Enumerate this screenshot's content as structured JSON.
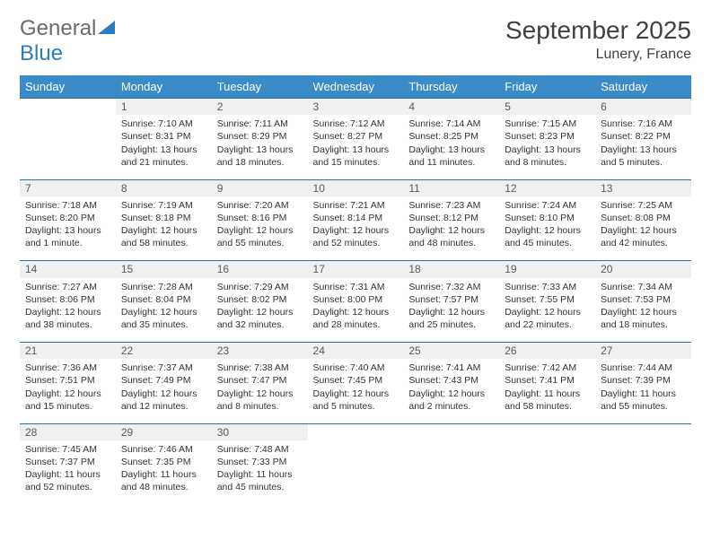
{
  "brand": {
    "part1": "General",
    "part2": "Blue"
  },
  "title": "September 2025",
  "location": "Lunery, France",
  "colors": {
    "header_bg": "#3b8bc9",
    "header_text": "#ffffff",
    "row_border": "#2f6f9e",
    "daynum_bg": "#eef0f1",
    "text": "#333333",
    "logo_gray": "#6b6b6b",
    "logo_blue": "#2b7bbf"
  },
  "typography": {
    "title_fontsize": 28,
    "location_fontsize": 16,
    "header_fontsize": 13,
    "cell_fontsize": 10.5
  },
  "day_names": [
    "Sunday",
    "Monday",
    "Tuesday",
    "Wednesday",
    "Thursday",
    "Friday",
    "Saturday"
  ],
  "weeks": [
    [
      null,
      {
        "n": "1",
        "sr": "Sunrise: 7:10 AM",
        "ss": "Sunset: 8:31 PM",
        "dl": "Daylight: 13 hours and 21 minutes."
      },
      {
        "n": "2",
        "sr": "Sunrise: 7:11 AM",
        "ss": "Sunset: 8:29 PM",
        "dl": "Daylight: 13 hours and 18 minutes."
      },
      {
        "n": "3",
        "sr": "Sunrise: 7:12 AM",
        "ss": "Sunset: 8:27 PM",
        "dl": "Daylight: 13 hours and 15 minutes."
      },
      {
        "n": "4",
        "sr": "Sunrise: 7:14 AM",
        "ss": "Sunset: 8:25 PM",
        "dl": "Daylight: 13 hours and 11 minutes."
      },
      {
        "n": "5",
        "sr": "Sunrise: 7:15 AM",
        "ss": "Sunset: 8:23 PM",
        "dl": "Daylight: 13 hours and 8 minutes."
      },
      {
        "n": "6",
        "sr": "Sunrise: 7:16 AM",
        "ss": "Sunset: 8:22 PM",
        "dl": "Daylight: 13 hours and 5 minutes."
      }
    ],
    [
      {
        "n": "7",
        "sr": "Sunrise: 7:18 AM",
        "ss": "Sunset: 8:20 PM",
        "dl": "Daylight: 13 hours and 1 minute."
      },
      {
        "n": "8",
        "sr": "Sunrise: 7:19 AM",
        "ss": "Sunset: 8:18 PM",
        "dl": "Daylight: 12 hours and 58 minutes."
      },
      {
        "n": "9",
        "sr": "Sunrise: 7:20 AM",
        "ss": "Sunset: 8:16 PM",
        "dl": "Daylight: 12 hours and 55 minutes."
      },
      {
        "n": "10",
        "sr": "Sunrise: 7:21 AM",
        "ss": "Sunset: 8:14 PM",
        "dl": "Daylight: 12 hours and 52 minutes."
      },
      {
        "n": "11",
        "sr": "Sunrise: 7:23 AM",
        "ss": "Sunset: 8:12 PM",
        "dl": "Daylight: 12 hours and 48 minutes."
      },
      {
        "n": "12",
        "sr": "Sunrise: 7:24 AM",
        "ss": "Sunset: 8:10 PM",
        "dl": "Daylight: 12 hours and 45 minutes."
      },
      {
        "n": "13",
        "sr": "Sunrise: 7:25 AM",
        "ss": "Sunset: 8:08 PM",
        "dl": "Daylight: 12 hours and 42 minutes."
      }
    ],
    [
      {
        "n": "14",
        "sr": "Sunrise: 7:27 AM",
        "ss": "Sunset: 8:06 PM",
        "dl": "Daylight: 12 hours and 38 minutes."
      },
      {
        "n": "15",
        "sr": "Sunrise: 7:28 AM",
        "ss": "Sunset: 8:04 PM",
        "dl": "Daylight: 12 hours and 35 minutes."
      },
      {
        "n": "16",
        "sr": "Sunrise: 7:29 AM",
        "ss": "Sunset: 8:02 PM",
        "dl": "Daylight: 12 hours and 32 minutes."
      },
      {
        "n": "17",
        "sr": "Sunrise: 7:31 AM",
        "ss": "Sunset: 8:00 PM",
        "dl": "Daylight: 12 hours and 28 minutes."
      },
      {
        "n": "18",
        "sr": "Sunrise: 7:32 AM",
        "ss": "Sunset: 7:57 PM",
        "dl": "Daylight: 12 hours and 25 minutes."
      },
      {
        "n": "19",
        "sr": "Sunrise: 7:33 AM",
        "ss": "Sunset: 7:55 PM",
        "dl": "Daylight: 12 hours and 22 minutes."
      },
      {
        "n": "20",
        "sr": "Sunrise: 7:34 AM",
        "ss": "Sunset: 7:53 PM",
        "dl": "Daylight: 12 hours and 18 minutes."
      }
    ],
    [
      {
        "n": "21",
        "sr": "Sunrise: 7:36 AM",
        "ss": "Sunset: 7:51 PM",
        "dl": "Daylight: 12 hours and 15 minutes."
      },
      {
        "n": "22",
        "sr": "Sunrise: 7:37 AM",
        "ss": "Sunset: 7:49 PM",
        "dl": "Daylight: 12 hours and 12 minutes."
      },
      {
        "n": "23",
        "sr": "Sunrise: 7:38 AM",
        "ss": "Sunset: 7:47 PM",
        "dl": "Daylight: 12 hours and 8 minutes."
      },
      {
        "n": "24",
        "sr": "Sunrise: 7:40 AM",
        "ss": "Sunset: 7:45 PM",
        "dl": "Daylight: 12 hours and 5 minutes."
      },
      {
        "n": "25",
        "sr": "Sunrise: 7:41 AM",
        "ss": "Sunset: 7:43 PM",
        "dl": "Daylight: 12 hours and 2 minutes."
      },
      {
        "n": "26",
        "sr": "Sunrise: 7:42 AM",
        "ss": "Sunset: 7:41 PM",
        "dl": "Daylight: 11 hours and 58 minutes."
      },
      {
        "n": "27",
        "sr": "Sunrise: 7:44 AM",
        "ss": "Sunset: 7:39 PM",
        "dl": "Daylight: 11 hours and 55 minutes."
      }
    ],
    [
      {
        "n": "28",
        "sr": "Sunrise: 7:45 AM",
        "ss": "Sunset: 7:37 PM",
        "dl": "Daylight: 11 hours and 52 minutes."
      },
      {
        "n": "29",
        "sr": "Sunrise: 7:46 AM",
        "ss": "Sunset: 7:35 PM",
        "dl": "Daylight: 11 hours and 48 minutes."
      },
      {
        "n": "30",
        "sr": "Sunrise: 7:48 AM",
        "ss": "Sunset: 7:33 PM",
        "dl": "Daylight: 11 hours and 45 minutes."
      },
      null,
      null,
      null,
      null
    ]
  ]
}
